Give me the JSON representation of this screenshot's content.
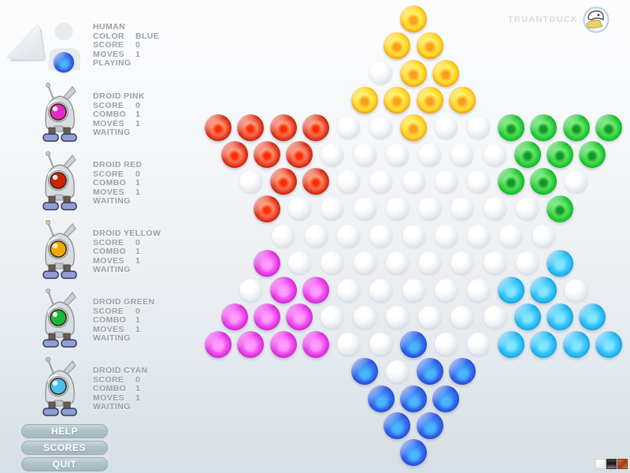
{
  "brand": {
    "label": "TRUANTDUCK",
    "logo": "duck-logo"
  },
  "players": [
    {
      "type": "human",
      "name": "HUMAN",
      "marble": "blue",
      "stats": [
        {
          "label": "COLOR",
          "value": "BLUE"
        },
        {
          "label": "SCORE",
          "value": "0"
        },
        {
          "label": "MOVES",
          "value": "1"
        }
      ],
      "status": "PLAYING"
    },
    {
      "type": "droid",
      "name": "DROID PINK",
      "eye": "#e02cc8",
      "stats": [
        {
          "label": "SCORE",
          "value": "0"
        },
        {
          "label": "COMBO",
          "value": "1"
        },
        {
          "label": "MOVES",
          "value": "1"
        }
      ],
      "status": "WAITING"
    },
    {
      "type": "droid",
      "name": "DROID RED",
      "eye": "#cc2200",
      "stats": [
        {
          "label": "SCORE",
          "value": "0"
        },
        {
          "label": "COMBO",
          "value": "1"
        },
        {
          "label": "MOVES",
          "value": "1"
        }
      ],
      "status": "WAITING"
    },
    {
      "type": "droid",
      "name": "DROID YELLOW",
      "eye": "#f0a800",
      "stats": [
        {
          "label": "SCORE",
          "value": "0"
        },
        {
          "label": "COMBO",
          "value": "1"
        },
        {
          "label": "MOVES",
          "value": "1"
        }
      ],
      "status": "WAITING"
    },
    {
      "type": "droid",
      "name": "DROID GREEN",
      "eye": "#17b83a",
      "stats": [
        {
          "label": "SCORE",
          "value": "0"
        },
        {
          "label": "COMBO",
          "value": "1"
        },
        {
          "label": "MOVES",
          "value": "1"
        }
      ],
      "status": "WAITING"
    },
    {
      "type": "droid",
      "name": "DROID CYAN",
      "eye": "#45c3ee",
      "stats": [
        {
          "label": "SCORE",
          "value": "0"
        },
        {
          "label": "COMBO",
          "value": "1"
        },
        {
          "label": "MOVES",
          "value": "1"
        }
      ],
      "status": "WAITING"
    }
  ],
  "buttons": [
    {
      "label": "HELP"
    },
    {
      "label": "SCORES"
    },
    {
      "label": "QUIT"
    }
  ],
  "board": {
    "rows": [
      "Y",
      "YY",
      "_YY",
      "YYYY",
      "RRRR__Y__GGGG",
      "RRR______GGG",
      "_RR_____GG_",
      "R________G",
      "_________",
      "M________C",
      "_MM_____CC_",
      "MMM______CCC",
      "MMMM__B__CCCC",
      "B_BB",
      "BBB",
      "BB",
      "B"
    ],
    "legend": {
      "Y": "yellow",
      "R": "red",
      "G": "green",
      "M": "magenta",
      "C": "cyan",
      "B": "blue",
      "_": "empty"
    }
  },
  "palette": {
    "yellow": "#ffd51e",
    "red": "#d42012",
    "green": "#1fc433",
    "magenta": "#e43ee4",
    "cyan": "#2bb9f2",
    "blue": "#2f63e8",
    "hole": "#e7edf0",
    "button": "#aabfc8",
    "text_gray": "#9aa0a5",
    "brand_gray": "#d8dce0"
  },
  "swatches": [
    {
      "name": "white",
      "color": "#f4f4f4"
    },
    {
      "name": "black",
      "color": "#1c1c1c"
    },
    {
      "name": "orange",
      "color": "#b4511e"
    }
  ]
}
